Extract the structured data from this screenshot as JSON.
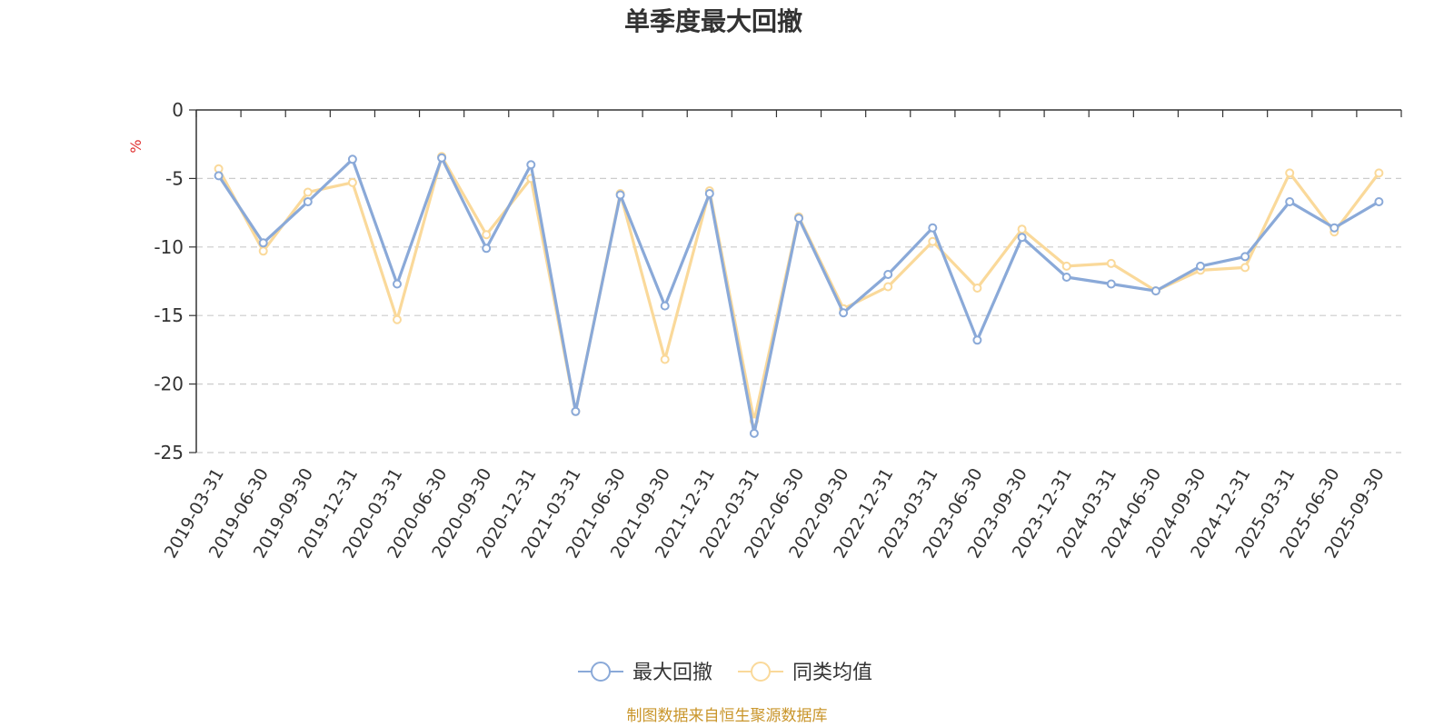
{
  "chart_data": {
    "type": "line",
    "title": "单季度最大回撤",
    "ylabel": "%",
    "ylim": [
      -25,
      0
    ],
    "yticks": [
      0,
      -5,
      -10,
      -15,
      -20,
      -25
    ],
    "ytick_labels": [
      "0",
      "-5",
      "-10",
      "-15",
      "-20",
      "-25"
    ],
    "grid": "horizontal-dashed",
    "legend_position": "bottom-center",
    "categories": [
      "2019-03-31",
      "2019-06-30",
      "2019-09-30",
      "2019-12-31",
      "2020-03-31",
      "2020-06-30",
      "2020-09-30",
      "2020-12-31",
      "2021-03-31",
      "2021-06-30",
      "2021-09-30",
      "2021-12-31",
      "2022-03-31",
      "2022-06-30",
      "2022-09-30",
      "2022-12-31",
      "2023-03-31",
      "2023-06-30",
      "2023-09-30",
      "2023-12-31",
      "2024-03-31",
      "2024-06-30",
      "2024-09-30",
      "2024-12-31",
      "2025-03-31",
      "2025-06-30",
      "2025-09-30"
    ],
    "series": [
      {
        "name": "最大回撤",
        "color": "#8aa9d8",
        "values": [
          -4.8,
          -9.7,
          -6.7,
          -3.6,
          -12.7,
          -3.5,
          -10.1,
          -4.0,
          -22.0,
          -6.2,
          -14.3,
          -6.1,
          -23.6,
          -7.9,
          -14.8,
          -12.0,
          -8.6,
          -16.8,
          -9.3,
          -12.2,
          -12.7,
          -13.2,
          -11.4,
          -10.7,
          -6.7,
          -8.6,
          -6.7
        ]
      },
      {
        "name": "同类均值",
        "color": "#fad99a",
        "values": [
          -4.3,
          -10.3,
          -6.0,
          -5.3,
          -15.3,
          -3.4,
          -9.1,
          -5.0,
          -22.0,
          -6.1,
          -18.2,
          -5.9,
          -22.7,
          -7.8,
          -14.5,
          -12.9,
          -9.6,
          -13.0,
          -8.7,
          -11.4,
          -11.2,
          -13.2,
          -11.7,
          -11.5,
          -4.6,
          -8.9,
          -4.6
        ]
      }
    ]
  },
  "legend": {
    "items": [
      "最大回撤",
      "同类均值"
    ]
  },
  "footer": {
    "source": "制图数据来自恒生聚源数据库"
  }
}
